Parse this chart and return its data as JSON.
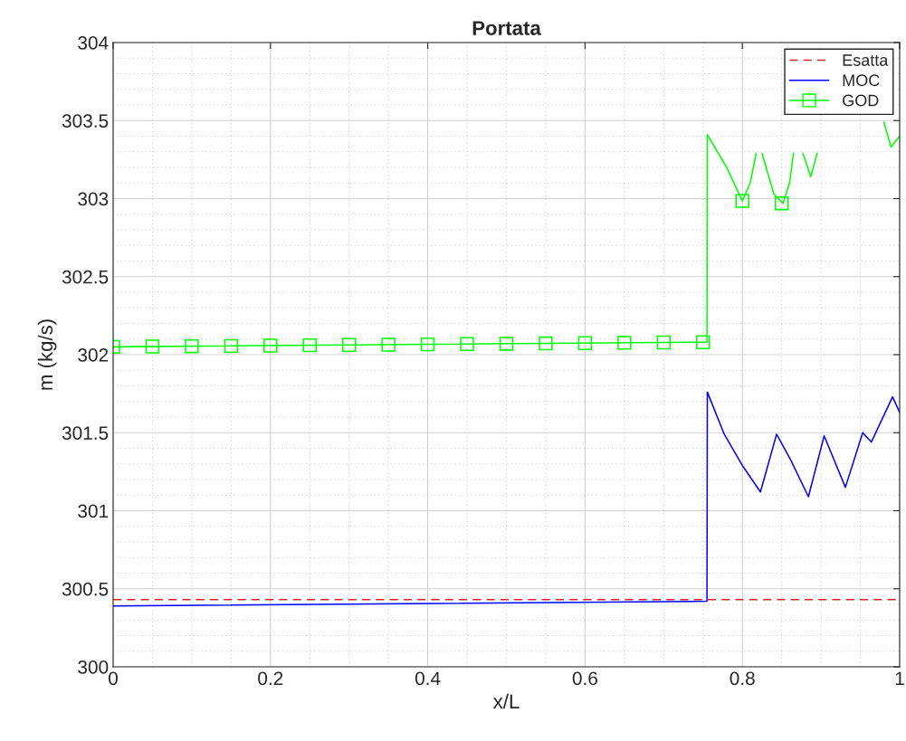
{
  "chart_data": {
    "type": "line",
    "title": "Portata",
    "xlabel": "x/L",
    "ylabel": "m (kg/s)",
    "xlim": [
      0,
      1
    ],
    "xticks": [
      0,
      0.2,
      0.4,
      0.6,
      0.8,
      1
    ],
    "ylim": [
      300,
      304
    ],
    "yticks": [
      300,
      300.5,
      301,
      301.5,
      302,
      302.5,
      303,
      303.5,
      304
    ],
    "grid": true,
    "legend": "top right",
    "series": [
      {
        "name": "Esatta",
        "color": "#d62728",
        "line_style": "dashed",
        "marker": "none",
        "x": [
          0,
          1
        ],
        "values": [
          300.43,
          300.43
        ]
      },
      {
        "name": "MOC",
        "color": "#0000ff",
        "line_style": "solid",
        "marker": "none",
        "x": [
          0,
          0.755,
          0.7555,
          0.777,
          0.8,
          0.823,
          0.8435,
          0.861,
          0.884,
          0.904,
          0.931,
          0.953,
          0.964,
          0.991,
          1.0
        ],
        "values": [
          300.39,
          300.42,
          301.76,
          301.49,
          301.29,
          301.12,
          301.49,
          301.33,
          301.09,
          301.48,
          301.15,
          301.5,
          301.44,
          301.73,
          301.63
        ]
      },
      {
        "name": "GOD",
        "color": "#00ff00",
        "line_style": "solid",
        "x": [
          0,
          0.75,
          0.755,
          0.7555,
          0.78,
          0.8,
          0.81,
          0.8175,
          0.82,
          0.825,
          0.84,
          0.8515,
          0.86,
          0.865,
          0.87,
          0.877,
          0.887,
          0.895,
          0.9,
          0.98,
          0.989,
          1.0
        ],
        "values": [
          302.05,
          302.08,
          302.08,
          303.41,
          303.2,
          302.985,
          303.1,
          303.29,
          null,
          303.29,
          303.03,
          302.97,
          303.1,
          303.29,
          null,
          303.29,
          303.14,
          303.29,
          null,
          303.49,
          303.33,
          303.4
        ]
      },
      {
        "type": "scatter",
        "color": "#00ff00",
        "marker": "square",
        "x": [
          0,
          0.05,
          0.1,
          0.15,
          0.2,
          0.25,
          0.3,
          0.35,
          0.4,
          0.45,
          0.5,
          0.55,
          0.6,
          0.65,
          0.7,
          0.75,
          0.8,
          0.85
        ],
        "values": [
          302.05,
          302.052,
          302.054,
          302.056,
          302.058,
          302.06,
          302.062,
          302.064,
          302.066,
          302.068,
          302.07,
          302.072,
          302.074,
          302.076,
          302.078,
          302.08,
          302.985,
          302.97
        ]
      }
    ]
  }
}
